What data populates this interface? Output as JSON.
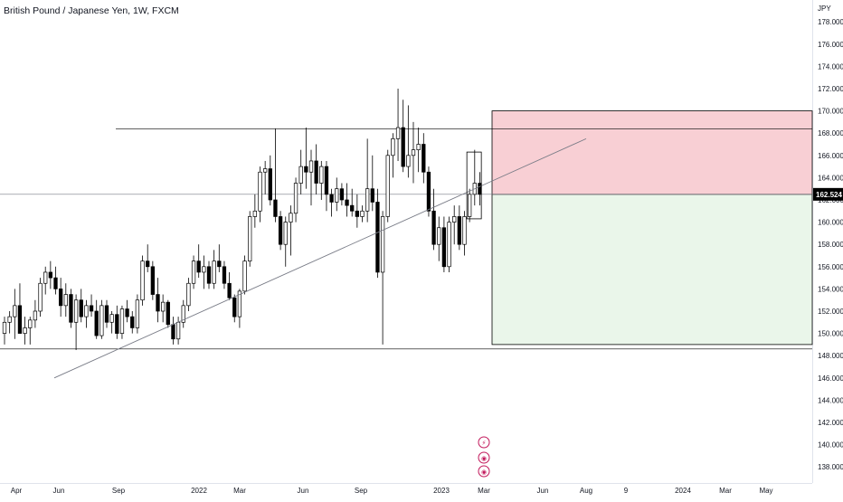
{
  "chart_data": {
    "type": "candlestick",
    "title": "British Pound / Japanese Yen, 1W, FXCM",
    "currency": "JPY",
    "last_price": "162.524",
    "price_axis": {
      "ylim": [
        137,
        180
      ],
      "ticks": [
        "138.000",
        "140.000",
        "142.000",
        "144.000",
        "146.000",
        "148.000",
        "150.000",
        "152.000",
        "154.000",
        "156.000",
        "158.000",
        "160.000",
        "162.000",
        "164.000",
        "166.000",
        "168.000",
        "170.000",
        "172.000",
        "174.000",
        "176.000",
        "178.000"
      ]
    },
    "time_axis": {
      "labels": [
        "Apr",
        "Jun",
        "Sep",
        "2022",
        "Mar",
        "Jun",
        "Sep",
        "2023",
        "Mar",
        "Jun",
        "Aug",
        "9",
        "2024",
        "Mar",
        "May"
      ]
    },
    "colors": {
      "up": "#ffffff",
      "down": "#000000",
      "outline": "#000000",
      "stop_zone": "#f7c7cc",
      "target_zone": "#eaf6ea",
      "lines": "#787b86"
    },
    "levels": {
      "resistance": 168.4,
      "support": 148.6,
      "stop_loss": 170.0,
      "entry": 162.5,
      "take_profit": 149.0
    },
    "trendline": [
      [
        146.0
      ],
      [
        167.5
      ]
    ],
    "candles": [
      [
        150.0,
        151.5,
        149.0,
        151.0
      ],
      [
        151.0,
        152.0,
        150.0,
        151.5
      ],
      [
        151.5,
        154.0,
        149.5,
        152.5
      ],
      [
        152.5,
        154.5,
        150.0,
        150.0
      ],
      [
        150.0,
        151.5,
        149.0,
        150.5
      ],
      [
        150.5,
        151.5,
        149.0,
        151.2
      ],
      [
        151.2,
        153.0,
        150.5,
        152.0
      ],
      [
        152.0,
        155.0,
        151.5,
        154.5
      ],
      [
        154.5,
        156.0,
        153.5,
        155.5
      ],
      [
        155.5,
        156.5,
        154.0,
        155.0
      ],
      [
        155.0,
        156.0,
        153.5,
        154.0
      ],
      [
        154.0,
        155.0,
        151.5,
        152.5
      ],
      [
        152.5,
        154.5,
        151.5,
        153.5
      ],
      [
        153.5,
        154.0,
        150.5,
        151.0
      ],
      [
        151.0,
        153.5,
        148.5,
        153.0
      ],
      [
        153.0,
        154.0,
        151.0,
        151.5
      ],
      [
        151.5,
        153.0,
        150.5,
        152.5
      ],
      [
        152.5,
        153.5,
        151.5,
        152.0
      ],
      [
        152.0,
        153.0,
        149.5,
        149.8
      ],
      [
        149.8,
        153.0,
        149.5,
        152.5
      ],
      [
        152.5,
        153.0,
        150.5,
        151.0
      ],
      [
        151.0,
        152.0,
        150.0,
        151.7
      ],
      [
        151.7,
        152.5,
        149.5,
        150.0
      ],
      [
        150.0,
        152.5,
        149.5,
        152.2
      ],
      [
        152.2,
        153.0,
        151.0,
        151.5
      ],
      [
        151.5,
        152.0,
        150.0,
        150.5
      ],
      [
        150.5,
        153.5,
        150.0,
        153.0
      ],
      [
        153.0,
        157.0,
        152.5,
        156.5
      ],
      [
        156.5,
        158.0,
        155.5,
        156.0
      ],
      [
        156.0,
        156.5,
        153.0,
        153.5
      ],
      [
        153.5,
        155.0,
        151.0,
        152.0
      ],
      [
        152.0,
        153.5,
        151.0,
        152.8
      ],
      [
        152.8,
        153.0,
        150.5,
        150.8
      ],
      [
        150.8,
        151.5,
        149.0,
        149.5
      ],
      [
        149.5,
        151.5,
        149.0,
        151.0
      ],
      [
        151.0,
        153.0,
        150.5,
        152.5
      ],
      [
        152.5,
        155.0,
        152.0,
        154.5
      ],
      [
        154.5,
        157.0,
        154.0,
        156.5
      ],
      [
        156.5,
        158.0,
        155.0,
        155.5
      ],
      [
        155.5,
        157.0,
        154.0,
        156.0
      ],
      [
        156.0,
        156.5,
        154.0,
        154.5
      ],
      [
        154.5,
        157.5,
        154.0,
        156.5
      ],
      [
        156.5,
        158.0,
        155.5,
        156.0
      ],
      [
        156.0,
        156.5,
        154.0,
        154.5
      ],
      [
        154.5,
        155.5,
        153.0,
        153.2
      ],
      [
        153.2,
        153.5,
        151.0,
        151.5
      ],
      [
        151.5,
        154.0,
        150.5,
        153.8
      ],
      [
        153.8,
        157.0,
        153.5,
        156.5
      ],
      [
        156.5,
        161.0,
        156.0,
        160.5
      ],
      [
        160.5,
        162.5,
        159.5,
        161.0
      ],
      [
        161.0,
        165.0,
        160.0,
        164.5
      ],
      [
        164.5,
        165.5,
        162.5,
        164.8
      ],
      [
        164.8,
        166.0,
        161.5,
        162.0
      ],
      [
        162.0,
        168.4,
        160.0,
        160.5
      ],
      [
        160.5,
        161.0,
        157.5,
        158.0
      ],
      [
        158.0,
        160.5,
        156.0,
        160.0
      ],
      [
        160.0,
        161.5,
        157.0,
        160.8
      ],
      [
        160.8,
        164.0,
        160.0,
        163.5
      ],
      [
        163.5,
        166.5,
        162.5,
        165.0
      ],
      [
        165.0,
        168.5,
        163.0,
        164.5
      ],
      [
        164.5,
        166.5,
        161.5,
        165.5
      ],
      [
        165.5,
        167.0,
        162.5,
        163.5
      ],
      [
        163.5,
        165.5,
        162.0,
        165.0
      ],
      [
        165.0,
        165.5,
        161.0,
        162.5
      ],
      [
        162.5,
        163.0,
        160.5,
        161.8
      ],
      [
        161.8,
        164.0,
        161.0,
        163.0
      ],
      [
        163.0,
        163.5,
        161.5,
        162.0
      ],
      [
        162.0,
        163.5,
        160.5,
        161.5
      ],
      [
        161.5,
        163.0,
        160.5,
        161.0
      ],
      [
        161.0,
        162.5,
        159.5,
        160.5
      ],
      [
        160.5,
        161.5,
        160.0,
        161.0
      ],
      [
        161.0,
        167.5,
        160.0,
        163.0
      ],
      [
        163.0,
        166.0,
        161.0,
        161.8
      ],
      [
        161.8,
        163.0,
        155.0,
        155.5
      ],
      [
        155.5,
        161.0,
        149.0,
        160.5
      ],
      [
        160.5,
        166.5,
        160.0,
        166.0
      ],
      [
        166.0,
        168.0,
        164.0,
        167.5
      ],
      [
        167.5,
        172.0,
        165.5,
        168.5
      ],
      [
        168.5,
        171.0,
        164.5,
        165.0
      ],
      [
        165.0,
        170.5,
        164.0,
        166.0
      ],
      [
        166.0,
        169.0,
        163.5,
        166.5
      ],
      [
        166.5,
        168.5,
        164.5,
        167.0
      ],
      [
        167.0,
        168.0,
        163.5,
        164.5
      ],
      [
        164.5,
        165.0,
        160.5,
        161.0
      ],
      [
        161.0,
        163.0,
        157.5,
        158.0
      ],
      [
        158.0,
        160.5,
        156.5,
        159.5
      ],
      [
        159.5,
        160.5,
        155.5,
        156.0
      ],
      [
        156.0,
        160.5,
        155.5,
        160.0
      ],
      [
        160.0,
        161.5,
        158.0,
        160.5
      ],
      [
        160.5,
        161.5,
        157.5,
        158.0
      ],
      [
        158.0,
        161.0,
        157.0,
        160.5
      ],
      [
        160.5,
        163.0,
        160.0,
        162.5
      ],
      [
        162.5,
        166.5,
        161.5,
        163.5
      ],
      [
        163.5,
        164.5,
        161.5,
        162.5
      ]
    ],
    "event_markers": [
      "⚡",
      "◉",
      "◉"
    ]
  }
}
